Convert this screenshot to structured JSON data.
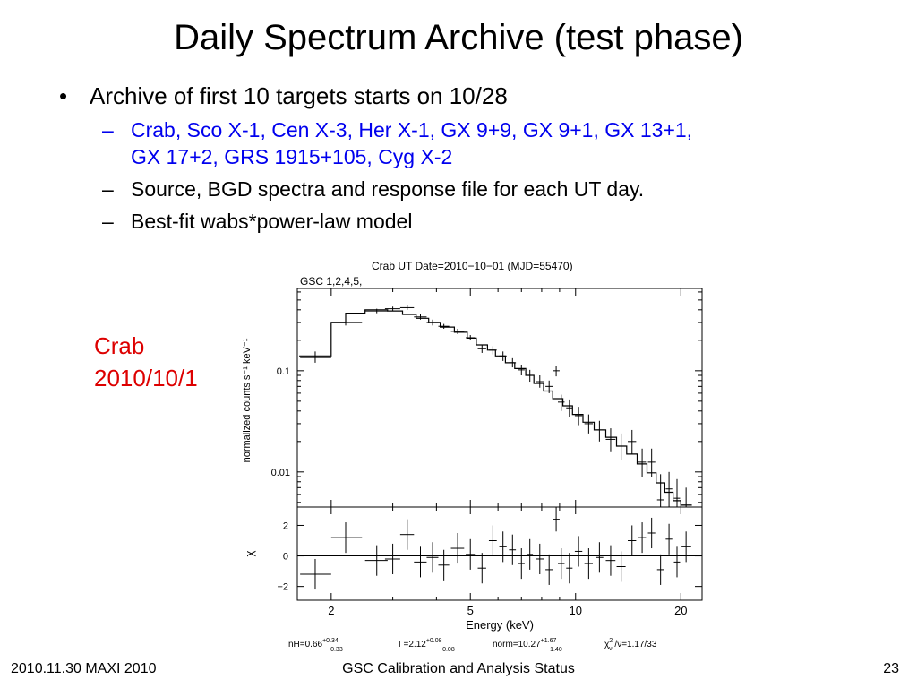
{
  "slide": {
    "title": "Daily Spectrum Archive (test phase)",
    "bullet1": "Archive of first 10 targets starts on 10/28",
    "sub1": "Crab, Sco X-1, Cen X-3, Her X-1, GX 9+9, GX 9+1, GX 13+1,",
    "sub1b": "GX 17+2, GRS 1915+105, Cyg X-2",
    "sub2": "Source, BGD spectra and response file for each UT day.",
    "sub3": "Best-fit wabs*power-law model",
    "dash": "–",
    "side_label_line1": "Crab",
    "side_label_line2": "2010/10/1"
  },
  "footer": {
    "left": "2010.11.30 MAXI 2010",
    "center": "GSC Calibration and Analysis Status",
    "right": "23"
  },
  "colors": {
    "text": "#000000",
    "sub_bullet_blue": "#0000ee",
    "side_label_red": "#dd0000"
  },
  "chart_data": {
    "type": "scatter",
    "title": "Crab  UT Date=2010−10−01 (MJD=55470)",
    "instrument": "GSC 1,2,4,5,",
    "xlabel": "Energy (keV)",
    "xscale": "log",
    "xlim": [
      1.6,
      23
    ],
    "xticks": [
      2,
      5,
      10,
      20
    ],
    "xtick_labels": [
      "2",
      "5",
      "10",
      "20"
    ],
    "top": {
      "ylabel": "normalized counts s⁻¹ keV⁻¹",
      "yscale": "log",
      "ylim": [
        0.0045,
        0.65
      ],
      "yticks": [
        0.01,
        0.1
      ],
      "ytick_labels": [
        "0.01",
        "0.1"
      ],
      "model_bins": [
        [
          1.62,
          2.0,
          0.14
        ],
        [
          2.0,
          2.2,
          0.3
        ],
        [
          2.2,
          2.5,
          0.37
        ],
        [
          2.5,
          2.9,
          0.4
        ],
        [
          2.9,
          3.2,
          0.39
        ],
        [
          3.2,
          3.5,
          0.36
        ],
        [
          3.5,
          3.8,
          0.33
        ],
        [
          3.8,
          4.1,
          0.3
        ],
        [
          4.1,
          4.5,
          0.27
        ],
        [
          4.5,
          4.9,
          0.24
        ],
        [
          4.9,
          5.2,
          0.21
        ],
        [
          5.2,
          5.6,
          0.18
        ],
        [
          5.6,
          5.9,
          0.16
        ],
        [
          5.9,
          6.3,
          0.14
        ],
        [
          6.3,
          6.7,
          0.12
        ],
        [
          6.7,
          7.2,
          0.105
        ],
        [
          7.2,
          7.6,
          0.09
        ],
        [
          7.6,
          8.1,
          0.075
        ],
        [
          8.1,
          8.6,
          0.063
        ],
        [
          8.6,
          9.2,
          0.053
        ],
        [
          9.2,
          9.8,
          0.045
        ],
        [
          9.8,
          10.5,
          0.037
        ],
        [
          10.5,
          11.3,
          0.031
        ],
        [
          11.3,
          12.2,
          0.026
        ],
        [
          12.2,
          13.1,
          0.022
        ],
        [
          13.1,
          14.0,
          0.018
        ],
        [
          14.0,
          15.0,
          0.015
        ],
        [
          15.0,
          16.0,
          0.012
        ],
        [
          16.0,
          17.0,
          0.0098
        ],
        [
          17.0,
          18.0,
          0.0078
        ],
        [
          18.0,
          19.0,
          0.0063
        ],
        [
          19.0,
          20.0,
          0.0052
        ],
        [
          20.0,
          21.5,
          0.0047
        ]
      ],
      "points": [
        {
          "x": 1.8,
          "y": 0.135,
          "ex": [
            1.63,
            2.0
          ],
          "ey": [
            0.12,
            0.155
          ]
        },
        {
          "x": 2.2,
          "y": 0.3,
          "ex": [
            2.0,
            2.45
          ],
          "ey": [
            0.28,
            0.32
          ]
        },
        {
          "x": 2.7,
          "y": 0.39,
          "ex": [
            2.5,
            2.9
          ],
          "ey": [
            0.37,
            0.41
          ]
        },
        {
          "x": 3.0,
          "y": 0.41,
          "ex": [
            2.85,
            3.15
          ],
          "ey": [
            0.39,
            0.43
          ]
        },
        {
          "x": 3.3,
          "y": 0.42,
          "ex": [
            3.15,
            3.45
          ],
          "ey": [
            0.4,
            0.45
          ]
        },
        {
          "x": 3.6,
          "y": 0.34,
          "ex": [
            3.45,
            3.75
          ],
          "ey": [
            0.32,
            0.36
          ]
        },
        {
          "x": 3.9,
          "y": 0.3,
          "ex": [
            3.75,
            4.05
          ],
          "ey": [
            0.28,
            0.32
          ]
        },
        {
          "x": 4.2,
          "y": 0.275,
          "ex": [
            4.05,
            4.35
          ],
          "ey": [
            0.26,
            0.29
          ]
        },
        {
          "x": 4.6,
          "y": 0.245,
          "ex": [
            4.4,
            4.8
          ],
          "ey": [
            0.23,
            0.26
          ]
        },
        {
          "x": 5.0,
          "y": 0.212,
          "ex": [
            4.85,
            5.15
          ],
          "ey": [
            0.2,
            0.225
          ]
        },
        {
          "x": 5.4,
          "y": 0.165,
          "ex": [
            5.25,
            5.55
          ],
          "ey": [
            0.15,
            0.18
          ]
        },
        {
          "x": 5.8,
          "y": 0.16,
          "ex": [
            5.65,
            5.95
          ],
          "ey": [
            0.145,
            0.175
          ]
        },
        {
          "x": 6.2,
          "y": 0.14,
          "ex": [
            6.05,
            6.35
          ],
          "ey": [
            0.125,
            0.155
          ]
        },
        {
          "x": 6.6,
          "y": 0.12,
          "ex": [
            6.45,
            6.75
          ],
          "ey": [
            0.108,
            0.133
          ]
        },
        {
          "x": 7.0,
          "y": 0.102,
          "ex": [
            6.85,
            7.15
          ],
          "ey": [
            0.09,
            0.115
          ]
        },
        {
          "x": 7.4,
          "y": 0.09,
          "ex": [
            7.25,
            7.55
          ],
          "ey": [
            0.078,
            0.102
          ]
        },
        {
          "x": 7.9,
          "y": 0.078,
          "ex": [
            7.7,
            8.1
          ],
          "ey": [
            0.068,
            0.09
          ]
        },
        {
          "x": 8.4,
          "y": 0.07,
          "ex": [
            8.2,
            8.6
          ],
          "ey": [
            0.06,
            0.08
          ]
        },
        {
          "x": 8.8,
          "y": 0.1,
          "ex": [
            8.6,
            9.0
          ],
          "ey": [
            0.088,
            0.112
          ]
        },
        {
          "x": 9.1,
          "y": 0.049,
          "ex": [
            8.9,
            9.3
          ],
          "ey": [
            0.04,
            0.058
          ]
        },
        {
          "x": 9.6,
          "y": 0.043,
          "ex": [
            9.4,
            9.8
          ],
          "ey": [
            0.035,
            0.052
          ]
        },
        {
          "x": 10.2,
          "y": 0.036,
          "ex": [
            9.95,
            10.45
          ],
          "ey": [
            0.029,
            0.044
          ]
        },
        {
          "x": 10.9,
          "y": 0.03,
          "ex": [
            10.6,
            11.2
          ],
          "ey": [
            0.024,
            0.037
          ]
        },
        {
          "x": 11.7,
          "y": 0.026,
          "ex": [
            11.4,
            12.0
          ],
          "ey": [
            0.02,
            0.032
          ]
        },
        {
          "x": 12.6,
          "y": 0.021,
          "ex": [
            12.2,
            13.0
          ],
          "ey": [
            0.016,
            0.027
          ]
        },
        {
          "x": 13.5,
          "y": 0.018,
          "ex": [
            13.1,
            13.9
          ],
          "ey": [
            0.013,
            0.024
          ]
        },
        {
          "x": 14.5,
          "y": 0.02,
          "ex": [
            14.1,
            14.9
          ],
          "ey": [
            0.015,
            0.026
          ]
        },
        {
          "x": 15.5,
          "y": 0.0125,
          "ex": [
            15.1,
            15.9
          ],
          "ey": [
            0.009,
            0.017
          ]
        },
        {
          "x": 16.5,
          "y": 0.0125,
          "ex": [
            16.1,
            16.9
          ],
          "ey": [
            0.009,
            0.017
          ]
        },
        {
          "x": 17.5,
          "y": 0.0053,
          "ex": [
            17.1,
            17.9
          ],
          "ey": [
            0.0045,
            0.0095
          ]
        },
        {
          "x": 18.5,
          "y": 0.0068,
          "ex": [
            18.1,
            18.9
          ],
          "ey": [
            0.0045,
            0.01
          ]
        },
        {
          "x": 19.5,
          "y": 0.0055,
          "ex": [
            19.1,
            19.9
          ],
          "ey": [
            0.0045,
            0.0085
          ]
        },
        {
          "x": 20.7,
          "y": 0.0047,
          "ex": [
            20.1,
            21.4
          ],
          "ey": [
            0.0045,
            0.007
          ]
        }
      ]
    },
    "bottom": {
      "ylabel": "χ",
      "ylim": [
        -2.9,
        3.2
      ],
      "yticks": [
        -2,
        0,
        2
      ],
      "ytick_labels": [
        "−2",
        "0",
        "2"
      ],
      "zero_line": 0,
      "points": [
        {
          "x": 1.8,
          "y": -1.2,
          "ex": [
            1.63,
            2.0
          ],
          "ey": [
            -2.2,
            -0.2
          ]
        },
        {
          "x": 2.2,
          "y": 1.2,
          "ex": [
            2.0,
            2.45
          ],
          "ey": [
            0.2,
            2.2
          ]
        },
        {
          "x": 2.7,
          "y": -0.3,
          "ex": [
            2.5,
            2.9
          ],
          "ey": [
            -1.3,
            0.7
          ]
        },
        {
          "x": 3.0,
          "y": -0.2,
          "ex": [
            2.85,
            3.15
          ],
          "ey": [
            -1.2,
            0.8
          ]
        },
        {
          "x": 3.3,
          "y": 1.4,
          "ex": [
            3.15,
            3.45
          ],
          "ey": [
            0.4,
            2.4
          ]
        },
        {
          "x": 3.6,
          "y": -0.4,
          "ex": [
            3.45,
            3.75
          ],
          "ey": [
            -1.4,
            0.6
          ]
        },
        {
          "x": 3.9,
          "y": -0.1,
          "ex": [
            3.75,
            4.05
          ],
          "ey": [
            -1.1,
            0.9
          ]
        },
        {
          "x": 4.2,
          "y": -0.6,
          "ex": [
            4.05,
            4.35
          ],
          "ey": [
            -1.6,
            0.4
          ]
        },
        {
          "x": 4.6,
          "y": 0.5,
          "ex": [
            4.4,
            4.8
          ],
          "ey": [
            -0.5,
            1.5
          ]
        },
        {
          "x": 5.0,
          "y": 0.1,
          "ex": [
            4.85,
            5.15
          ],
          "ey": [
            -0.9,
            1.1
          ]
        },
        {
          "x": 5.4,
          "y": -0.8,
          "ex": [
            5.25,
            5.55
          ],
          "ey": [
            -1.8,
            0.2
          ]
        },
        {
          "x": 5.8,
          "y": 1.0,
          "ex": [
            5.65,
            5.95
          ],
          "ey": [
            0.0,
            2.0
          ]
        },
        {
          "x": 6.2,
          "y": 0.6,
          "ex": [
            6.05,
            6.35
          ],
          "ey": [
            -0.4,
            1.6
          ]
        },
        {
          "x": 6.6,
          "y": 0.4,
          "ex": [
            6.45,
            6.75
          ],
          "ey": [
            -0.6,
            1.4
          ]
        },
        {
          "x": 7.0,
          "y": -0.5,
          "ex": [
            6.85,
            7.15
          ],
          "ey": [
            -1.5,
            0.5
          ]
        },
        {
          "x": 7.4,
          "y": 0.1,
          "ex": [
            7.25,
            7.55
          ],
          "ey": [
            -0.9,
            1.1
          ]
        },
        {
          "x": 7.9,
          "y": -0.2,
          "ex": [
            7.7,
            8.1
          ],
          "ey": [
            -1.2,
            0.8
          ]
        },
        {
          "x": 8.4,
          "y": -0.9,
          "ex": [
            8.2,
            8.6
          ],
          "ey": [
            -1.9,
            0.1
          ]
        },
        {
          "x": 8.8,
          "y": 2.4,
          "ex": [
            8.6,
            9.0
          ],
          "ey": [
            1.6,
            3.2
          ]
        },
        {
          "x": 9.1,
          "y": -0.5,
          "ex": [
            8.9,
            9.3
          ],
          "ey": [
            -1.5,
            0.5
          ]
        },
        {
          "x": 9.6,
          "y": -0.8,
          "ex": [
            9.4,
            9.8
          ],
          "ey": [
            -1.8,
            0.2
          ]
        },
        {
          "x": 10.2,
          "y": 0.3,
          "ex": [
            9.95,
            10.45
          ],
          "ey": [
            -0.7,
            1.3
          ]
        },
        {
          "x": 10.9,
          "y": -0.5,
          "ex": [
            10.6,
            11.2
          ],
          "ey": [
            -1.5,
            0.5
          ]
        },
        {
          "x": 11.7,
          "y": -0.1,
          "ex": [
            11.4,
            12.0
          ],
          "ey": [
            -1.1,
            0.9
          ]
        },
        {
          "x": 12.6,
          "y": -0.3,
          "ex": [
            12.2,
            13.0
          ],
          "ey": [
            -1.3,
            0.7
          ]
        },
        {
          "x": 13.5,
          "y": -0.7,
          "ex": [
            13.1,
            13.9
          ],
          "ey": [
            -1.7,
            0.3
          ]
        },
        {
          "x": 14.5,
          "y": 1.0,
          "ex": [
            14.1,
            14.9
          ],
          "ey": [
            0.0,
            2.0
          ]
        },
        {
          "x": 15.5,
          "y": 1.2,
          "ex": [
            15.1,
            15.9
          ],
          "ey": [
            0.2,
            2.2
          ]
        },
        {
          "x": 16.5,
          "y": 1.5,
          "ex": [
            16.1,
            16.9
          ],
          "ey": [
            0.5,
            2.5
          ]
        },
        {
          "x": 17.5,
          "y": -0.9,
          "ex": [
            17.1,
            17.9
          ],
          "ey": [
            -1.9,
            0.1
          ]
        },
        {
          "x": 18.5,
          "y": 1.1,
          "ex": [
            18.1,
            18.9
          ],
          "ey": [
            0.1,
            2.1
          ]
        },
        {
          "x": 19.5,
          "y": -0.4,
          "ex": [
            19.1,
            19.9
          ],
          "ey": [
            -1.4,
            0.6
          ]
        },
        {
          "x": 20.7,
          "y": 0.6,
          "ex": [
            20.1,
            21.4
          ],
          "ey": [
            -0.4,
            1.6
          ]
        }
      ]
    },
    "fit_params": {
      "nh": {
        "label": "nH=",
        "value": "0.66",
        "plus": "+0.34",
        "minus": "−0.33"
      },
      "gamma": {
        "label": "Γ=",
        "value": "2.12",
        "plus": "+0.08",
        "minus": "−0.08"
      },
      "norm": {
        "label": "norm=",
        "value": "10.27",
        "plus": "+1.67",
        "minus": "−1.40"
      },
      "chi2": {
        "chi": "χ",
        "sup": "2",
        "sub": "ν",
        "rest": " /ν=1.17/33"
      }
    }
  }
}
